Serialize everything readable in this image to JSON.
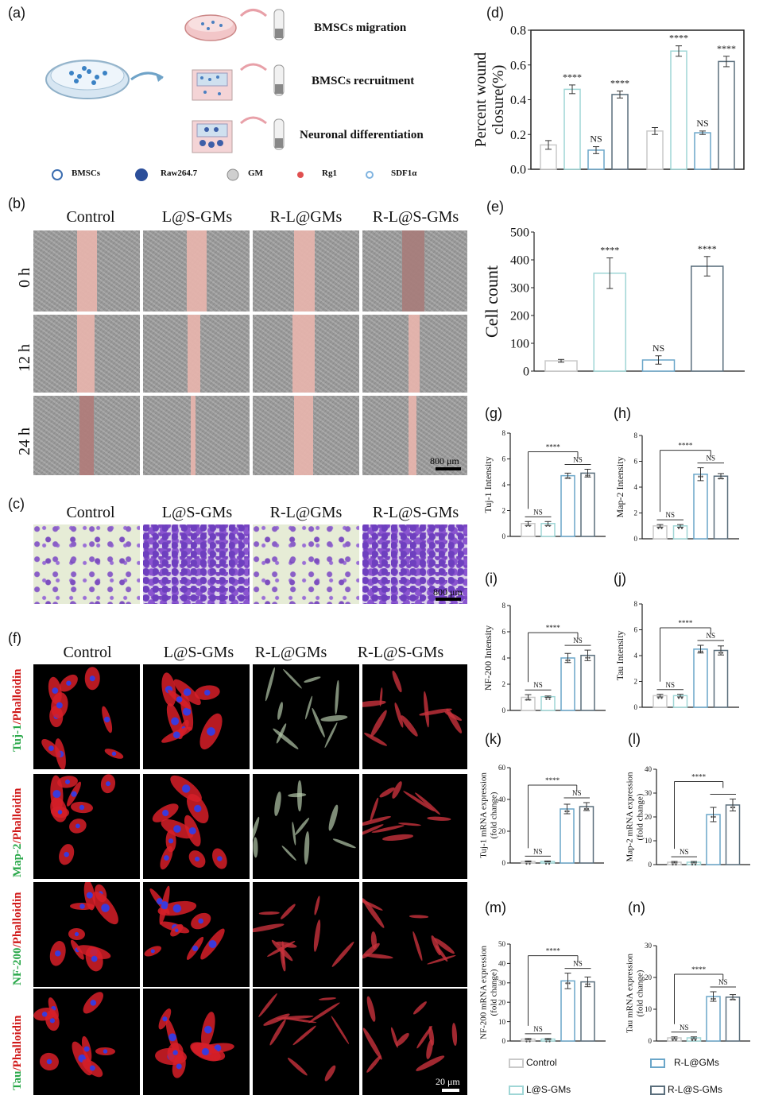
{
  "panels": {
    "a": "(a)",
    "b": "(b)",
    "c": "(c)",
    "d": "(d)",
    "e": "(e)",
    "f": "(f)",
    "g": "(g)",
    "h": "(h)",
    "i": "(i)",
    "j": "(j)",
    "k": "(k)",
    "l": "(l)",
    "m": "(m)",
    "n": "(n)"
  },
  "schematic": {
    "labels": [
      "BMSCs migration",
      "BMSCs recruitment",
      "Neuronal differentiation"
    ],
    "key": [
      "BMSCs",
      "Raw264.7",
      "GM",
      "Rg1",
      "SDF1α"
    ]
  },
  "groups": [
    "Control",
    "L@S-GMs",
    "R-L@GMs",
    "R-L@S-GMs"
  ],
  "wound": {
    "rows": [
      "0 h",
      "12 h",
      "24 h"
    ],
    "scale": "800 μm"
  },
  "transwell": {
    "scale": "800 μm"
  },
  "fluor": {
    "rows": [
      {
        "green": "Tuj-1",
        "red": "/Phalloidin"
      },
      {
        "green": "Map-2",
        "red": "/Phalloidin"
      },
      {
        "green": "NF-200",
        "red": "/Phalloidin"
      },
      {
        "green": "Tau",
        "red": "/Phalloidin"
      }
    ],
    "scale": "20 μm"
  },
  "legend": {
    "items": [
      {
        "label": "Control",
        "color": "#c9c9c9"
      },
      {
        "label": "L@S-GMs",
        "color": "#9fd6d6"
      },
      {
        "label": "R-L@GMs",
        "color": "#6aa6c9"
      },
      {
        "label": "R-L@S-GMs",
        "color": "#5a6e7c"
      }
    ]
  },
  "chart_data": [
    {
      "id": "d",
      "type": "bar",
      "ylabel": "Percent wound closure(%)",
      "ylim": [
        0,
        0.8
      ],
      "yticks": [
        0.0,
        0.2,
        0.4,
        0.6,
        0.8
      ],
      "series": [
        {
          "values": [
            0.14,
            0.46,
            0.11,
            0.43
          ],
          "errors": [
            0.025,
            0.025,
            0.02,
            0.02
          ],
          "sig": [
            "",
            "****",
            "NS",
            "****"
          ]
        },
        {
          "values": [
            0.22,
            0.68,
            0.21,
            0.62
          ],
          "errors": [
            0.02,
            0.03,
            0.01,
            0.03
          ],
          "sig": [
            "",
            "****",
            "NS",
            "****"
          ]
        }
      ]
    },
    {
      "id": "e",
      "type": "bar",
      "ylabel": "Cell count",
      "ylim": [
        0,
        500
      ],
      "yticks": [
        0,
        100,
        200,
        300,
        400,
        500
      ],
      "values": [
        37,
        352,
        40,
        377
      ],
      "errors": [
        5,
        55,
        15,
        35
      ],
      "sig": [
        "",
        "****",
        "NS",
        "****"
      ]
    },
    {
      "id": "g",
      "type": "bar",
      "ylabel": "Tuj-1 Intensity",
      "ylim": [
        0,
        8
      ],
      "yticks": [
        0,
        2,
        4,
        6,
        8
      ],
      "values": [
        1.0,
        1.0,
        4.7,
        4.9
      ],
      "errors": [
        0.15,
        0.15,
        0.2,
        0.3
      ],
      "brackets": [
        {
          "from": 0,
          "to": 1,
          "text": "NS"
        },
        {
          "from": 2,
          "to": 3,
          "text": "NS"
        },
        {
          "from": 0,
          "to": 2.5,
          "text": "****"
        }
      ]
    },
    {
      "id": "h",
      "type": "bar",
      "ylabel": "Map-2 Intensity",
      "ylim": [
        0,
        8
      ],
      "yticks": [
        0,
        2,
        4,
        6,
        8
      ],
      "values": [
        1.0,
        1.0,
        5.0,
        4.85
      ],
      "errors": [
        0.1,
        0.1,
        0.5,
        0.2
      ],
      "brackets": [
        {
          "from": 0,
          "to": 1,
          "text": "NS"
        },
        {
          "from": 2,
          "to": 3,
          "text": "NS"
        },
        {
          "from": 0,
          "to": 2.5,
          "text": "****"
        }
      ]
    },
    {
      "id": "i",
      "type": "bar",
      "ylabel": "NF-200 Intensity",
      "ylim": [
        0,
        8
      ],
      "yticks": [
        0,
        2,
        4,
        6,
        8
      ],
      "values": [
        1.0,
        1.05,
        4.0,
        4.2
      ],
      "errors": [
        0.2,
        0.05,
        0.35,
        0.4
      ],
      "brackets": [
        {
          "from": 0,
          "to": 1,
          "text": "NS"
        },
        {
          "from": 2,
          "to": 3,
          "text": "NS"
        },
        {
          "from": 0,
          "to": 2.5,
          "text": "****"
        }
      ]
    },
    {
      "id": "j",
      "type": "bar",
      "ylabel": "Tau Intensity",
      "ylim": [
        0,
        8
      ],
      "yticks": [
        0,
        2,
        4,
        6,
        8
      ],
      "values": [
        0.9,
        0.9,
        4.5,
        4.4
      ],
      "errors": [
        0.1,
        0.1,
        0.3,
        0.35
      ],
      "brackets": [
        {
          "from": 0,
          "to": 1,
          "text": "NS"
        },
        {
          "from": 2,
          "to": 3,
          "text": "NS"
        },
        {
          "from": 0,
          "to": 2.5,
          "text": "****"
        }
      ]
    },
    {
      "id": "k",
      "type": "bar",
      "ylabel": "Tuj-1 mRNA expression (fold change)",
      "ylim": [
        0,
        60
      ],
      "yticks": [
        0,
        20,
        40,
        60
      ],
      "values": [
        1,
        1,
        34,
        35.5
      ],
      "errors": [
        0.3,
        0.3,
        3,
        2.5
      ],
      "brackets": [
        {
          "from": 0,
          "to": 1,
          "text": "NS"
        },
        {
          "from": 2,
          "to": 3,
          "text": "NS"
        },
        {
          "from": 0,
          "to": 2.5,
          "text": "****"
        }
      ]
    },
    {
      "id": "l",
      "type": "bar",
      "ylabel": "Map-2 mRNA expression (fold change)",
      "ylim": [
        0,
        40
      ],
      "yticks": [
        0,
        10,
        20,
        30,
        40
      ],
      "values": [
        1,
        1,
        21,
        25
      ],
      "errors": [
        0.3,
        0.3,
        3,
        2.5
      ],
      "brackets": [
        {
          "from": 0,
          "to": 1,
          "text": "NS"
        },
        {
          "from": 2,
          "to": 3,
          "text": ""
        },
        {
          "from": 0,
          "to": 2.5,
          "text": "****"
        }
      ]
    },
    {
      "id": "m",
      "type": "bar",
      "ylabel": "NF-200 mRNA expression (fold change)",
      "ylim": [
        0,
        50
      ],
      "yticks": [
        0,
        10,
        20,
        30,
        40,
        50
      ],
      "values": [
        1,
        1,
        31,
        30.5
      ],
      "errors": [
        0.3,
        0.3,
        4,
        2.5
      ],
      "brackets": [
        {
          "from": 0,
          "to": 1,
          "text": "NS"
        },
        {
          "from": 2,
          "to": 3,
          "text": "NS"
        },
        {
          "from": 0,
          "to": 2.5,
          "text": "****"
        }
      ]
    },
    {
      "id": "n",
      "type": "bar",
      "ylabel": "Tau mRNA expression (fold change)",
      "ylim": [
        0,
        30
      ],
      "yticks": [
        0,
        10,
        20,
        30
      ],
      "values": [
        1,
        1,
        14,
        13.8
      ],
      "errors": [
        0.3,
        0.3,
        1.5,
        0.8
      ],
      "brackets": [
        {
          "from": 0,
          "to": 1,
          "text": "NS"
        },
        {
          "from": 2,
          "to": 3,
          "text": "NS"
        },
        {
          "from": 0,
          "to": 2.5,
          "text": "****"
        }
      ]
    }
  ]
}
